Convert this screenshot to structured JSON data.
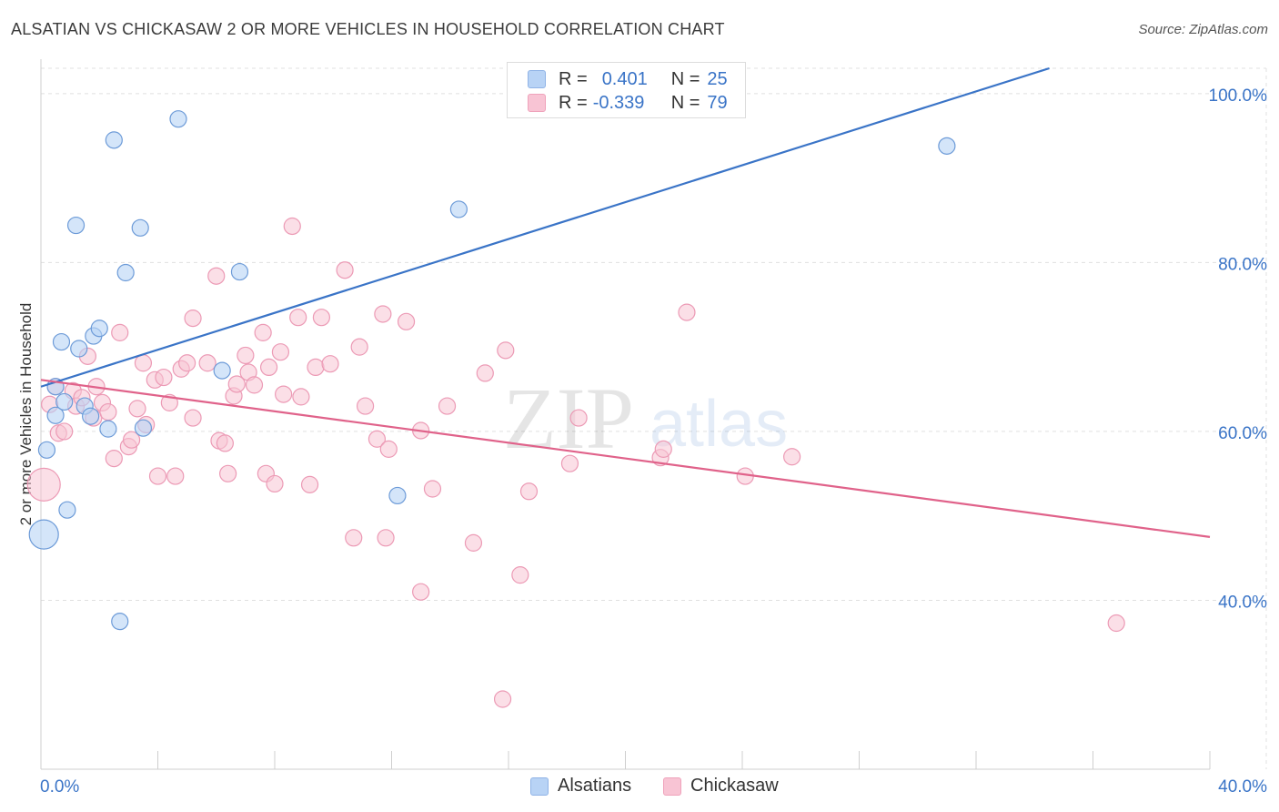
{
  "title": "ALSATIAN VS CHICKASAW 2 OR MORE VEHICLES IN HOUSEHOLD CORRELATION CHART",
  "source": "Source: ZipAtlas.com",
  "watermark": {
    "zip": "ZIP",
    "atlas": "atlas"
  },
  "colors": {
    "blue": "#3a74c7",
    "blue_fill": "#b8d3f5",
    "pink": "#e0628a",
    "pink_fill": "#f8c4d4",
    "grid": "#e0e0e0",
    "axis_label": "#3a74c7"
  },
  "legend": {
    "row1": {
      "r_label": "R =",
      "r_value": "0.401",
      "n_label": "N =",
      "n_value": "25"
    },
    "row2": {
      "r_label": "R =",
      "r_value": "-0.339",
      "n_label": "N =",
      "n_value": "79"
    }
  },
  "bottom_legend": {
    "series1": "Alsatians",
    "series2": "Chickasaw"
  },
  "chart_data": {
    "type": "scatter",
    "title": "ALSATIAN VS CHICKASAW 2 OR MORE VEHICLES IN HOUSEHOLD CORRELATION CHART",
    "xlabel": "",
    "ylabel": "2 or more Vehicles in Household",
    "xlim": [
      0,
      40
    ],
    "ylim": [
      20,
      103
    ],
    "x_ticks": [
      "0.0%",
      "40.0%"
    ],
    "y_ticks": [
      "40.0%",
      "60.0%",
      "80.0%",
      "100.0%"
    ],
    "y_tick_values": [
      40,
      60,
      80,
      100
    ],
    "grid": true,
    "legend_position": "top-center",
    "series": [
      {
        "name": "Alsatians",
        "color": "#3a74c7",
        "r": 0.401,
        "n": 25,
        "trend": {
          "x": [
            0,
            40
          ],
          "y": [
            65.3,
            109.0
          ]
        },
        "points": [
          [
            0.1,
            47.8,
            16
          ],
          [
            0.2,
            57.8,
            9
          ],
          [
            0.5,
            65.3,
            9
          ],
          [
            0.5,
            61.9,
            9
          ],
          [
            0.7,
            70.6,
            9
          ],
          [
            0.8,
            63.5,
            9
          ],
          [
            0.9,
            50.7,
            9
          ],
          [
            1.2,
            84.4,
            9
          ],
          [
            1.3,
            69.8,
            9
          ],
          [
            1.5,
            63.0,
            9
          ],
          [
            1.7,
            61.8,
            9
          ],
          [
            1.8,
            71.3,
            9
          ],
          [
            2.0,
            72.2,
            9
          ],
          [
            2.3,
            60.3,
            9
          ],
          [
            2.5,
            94.5,
            9
          ],
          [
            2.7,
            37.5,
            9
          ],
          [
            2.9,
            78.8,
            9
          ],
          [
            3.4,
            84.1,
            9
          ],
          [
            3.5,
            60.4,
            9
          ],
          [
            4.7,
            97.0,
            9
          ],
          [
            6.2,
            67.2,
            9
          ],
          [
            6.8,
            78.9,
            9
          ],
          [
            12.2,
            52.4,
            9
          ],
          [
            14.3,
            86.3,
            9
          ],
          [
            31.0,
            93.8,
            9
          ]
        ]
      },
      {
        "name": "Chickasaw",
        "color": "#e0628a",
        "r": -0.339,
        "n": 79,
        "trend": {
          "x": [
            0,
            40
          ],
          "y": [
            66.1,
            47.5
          ]
        },
        "points": [
          [
            0.1,
            53.7,
            18
          ],
          [
            0.3,
            63.2,
            9
          ],
          [
            0.5,
            65.3,
            9
          ],
          [
            0.6,
            59.8,
            9
          ],
          [
            0.8,
            60.0,
            9
          ],
          [
            1.1,
            64.8,
            9
          ],
          [
            1.2,
            63.0,
            9
          ],
          [
            1.4,
            64.0,
            9
          ],
          [
            1.6,
            68.9,
            9
          ],
          [
            1.8,
            61.6,
            9
          ],
          [
            1.9,
            65.3,
            9
          ],
          [
            2.1,
            63.4,
            9
          ],
          [
            2.3,
            62.3,
            9
          ],
          [
            2.5,
            56.8,
            9
          ],
          [
            2.7,
            71.7,
            9
          ],
          [
            3.0,
            58.2,
            9
          ],
          [
            3.1,
            59.0,
            9
          ],
          [
            3.3,
            62.7,
            9
          ],
          [
            3.5,
            68.1,
            9
          ],
          [
            3.6,
            60.8,
            9
          ],
          [
            3.9,
            66.1,
            9
          ],
          [
            4.0,
            54.7,
            9
          ],
          [
            4.2,
            66.4,
            9
          ],
          [
            4.4,
            63.4,
            9
          ],
          [
            4.6,
            54.7,
            9
          ],
          [
            4.8,
            67.4,
            9
          ],
          [
            5.0,
            68.1,
            9
          ],
          [
            5.2,
            61.6,
            9
          ],
          [
            5.2,
            73.4,
            9
          ],
          [
            5.7,
            68.1,
            9
          ],
          [
            6.0,
            78.4,
            9
          ],
          [
            6.1,
            58.9,
            9
          ],
          [
            6.3,
            58.6,
            9
          ],
          [
            6.4,
            55.0,
            9
          ],
          [
            6.6,
            64.2,
            9
          ],
          [
            6.7,
            65.6,
            9
          ],
          [
            7.0,
            69.0,
            9
          ],
          [
            7.1,
            67.0,
            9
          ],
          [
            7.3,
            65.5,
            9
          ],
          [
            7.6,
            71.7,
            9
          ],
          [
            7.7,
            55.0,
            9
          ],
          [
            7.8,
            67.6,
            9
          ],
          [
            8.0,
            53.8,
            9
          ],
          [
            8.2,
            69.4,
            9
          ],
          [
            8.3,
            64.4,
            9
          ],
          [
            8.6,
            84.3,
            9
          ],
          [
            8.8,
            73.5,
            9
          ],
          [
            8.9,
            64.1,
            9
          ],
          [
            9.2,
            53.7,
            9
          ],
          [
            9.4,
            67.6,
            9
          ],
          [
            9.6,
            73.5,
            9
          ],
          [
            9.9,
            68.0,
            9
          ],
          [
            10.4,
            79.1,
            9
          ],
          [
            10.7,
            47.4,
            9
          ],
          [
            10.9,
            70.0,
            9
          ],
          [
            11.1,
            63.0,
            9
          ],
          [
            11.5,
            59.1,
            9
          ],
          [
            11.7,
            73.9,
            9
          ],
          [
            11.8,
            47.4,
            9
          ],
          [
            11.9,
            57.9,
            9
          ],
          [
            12.5,
            73.0,
            9
          ],
          [
            13.0,
            60.1,
            9
          ],
          [
            13.0,
            41.0,
            9
          ],
          [
            13.4,
            53.2,
            9
          ],
          [
            13.9,
            63.0,
            9
          ],
          [
            14.8,
            46.8,
            9
          ],
          [
            15.2,
            66.9,
            9
          ],
          [
            15.8,
            28.3,
            9
          ],
          [
            15.9,
            69.6,
            9
          ],
          [
            16.4,
            43.0,
            9
          ],
          [
            16.7,
            52.9,
            9
          ],
          [
            18.1,
            56.2,
            9
          ],
          [
            18.4,
            61.6,
            9
          ],
          [
            21.2,
            56.9,
            9
          ],
          [
            21.3,
            57.9,
            9
          ],
          [
            22.1,
            74.1,
            9
          ],
          [
            24.1,
            54.7,
            9
          ],
          [
            25.7,
            57.0,
            9
          ],
          [
            36.8,
            37.3,
            9
          ]
        ]
      }
    ]
  }
}
